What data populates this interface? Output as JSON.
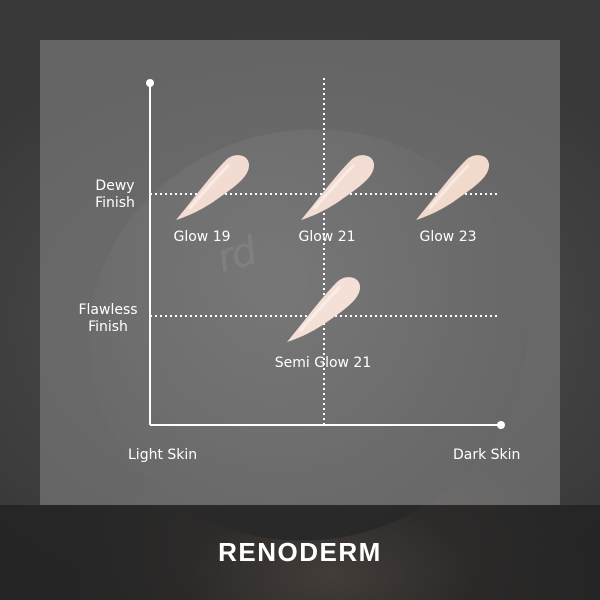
{
  "brand": "RENODERM",
  "axis": {
    "y_top_label_line1": "Dewy",
    "y_top_label_line2": "Finish",
    "y_bottom_label_line1": "Flawless",
    "y_bottom_label_line2": "Finish",
    "x_left_label": "Light Skin",
    "x_right_label": "Dark Skin"
  },
  "background_mark": "rd",
  "shades": [
    {
      "name": "Glow 19",
      "color": "#f2dcd2"
    },
    {
      "name": "Glow 21",
      "color": "#f3ddd3"
    },
    {
      "name": "Glow 23",
      "color": "#f1d9cc"
    },
    {
      "name": "Semi Glow 21",
      "color": "#f4e0d6"
    }
  ],
  "colors": {
    "panel_overlay": "#808080",
    "axis_line": "#ffffff",
    "label_text": "#ffffff"
  }
}
